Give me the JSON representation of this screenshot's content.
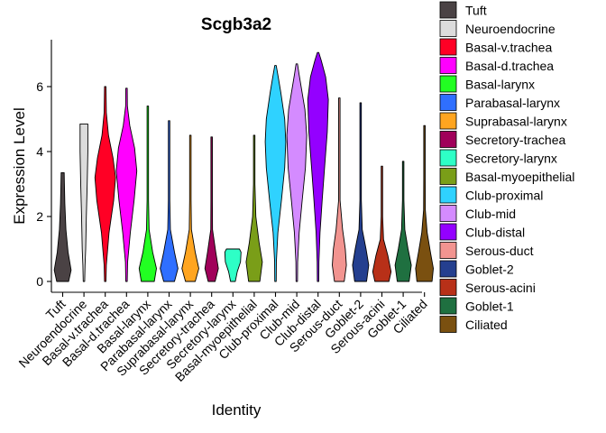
{
  "chart_data": {
    "type": "violin",
    "title": "Scgb3a2",
    "xlabel": "Identity",
    "ylabel": "Expression Level",
    "ylim": [
      -0.25,
      7.45
    ],
    "yticks": [
      0,
      2,
      4,
      6
    ],
    "grid": false,
    "legend_position": "right",
    "categories": [
      "Tuft",
      "Neuroendocrine",
      "Basal-v.trachea",
      "Basal-d.trachea",
      "Basal-larynx",
      "Parabasal-larynx",
      "Suprabasal-larynx",
      "Secretory-trachea",
      "Secretory-larynx",
      "Basal-myoepithelial",
      "Club-proximal",
      "Club-mid",
      "Club-distal",
      "Serous-duct",
      "Goblet-2",
      "Serous-acini",
      "Goblet-1",
      "Ciliated"
    ],
    "series": [
      {
        "name": "Tuft",
        "color": "#4A4244",
        "max": 3.35,
        "profile": [
          [
            0,
            0.55
          ],
          [
            0.35,
            0.78
          ],
          [
            0.9,
            0.5
          ],
          [
            1.6,
            0.3
          ],
          [
            2.4,
            0.2
          ],
          [
            3.0,
            0.16
          ],
          [
            3.35,
            0.14
          ]
        ]
      },
      {
        "name": "Neuroendocrine",
        "color": "#DCDCDC",
        "max": 4.85,
        "profile": [
          [
            0,
            0.05
          ],
          [
            0.5,
            0.1
          ],
          [
            1.0,
            0.16
          ],
          [
            2.0,
            0.22
          ],
          [
            3.0,
            0.3
          ],
          [
            4.0,
            0.36
          ],
          [
            4.85,
            0.36
          ]
        ]
      },
      {
        "name": "Basal-v.trachea",
        "color": "#FF0025",
        "max": 6.0,
        "profile": [
          [
            0,
            0.02
          ],
          [
            0.5,
            0.1
          ],
          [
            1.5,
            0.35
          ],
          [
            2.5,
            0.78
          ],
          [
            3.2,
            0.95
          ],
          [
            3.8,
            0.72
          ],
          [
            4.5,
            0.3
          ],
          [
            5.2,
            0.1
          ],
          [
            6.0,
            0.02
          ]
        ]
      },
      {
        "name": "Basal-d.trachea",
        "color": "#FF00FF",
        "max": 5.95,
        "profile": [
          [
            0,
            0.02
          ],
          [
            0.6,
            0.1
          ],
          [
            1.5,
            0.35
          ],
          [
            2.5,
            0.7
          ],
          [
            3.4,
            0.95
          ],
          [
            4.1,
            0.75
          ],
          [
            4.8,
            0.3
          ],
          [
            5.4,
            0.08
          ],
          [
            5.95,
            0.02
          ]
        ]
      },
      {
        "name": "Basal-larynx",
        "color": "#22FF22",
        "max": 5.4,
        "profile": [
          [
            0,
            0.6
          ],
          [
            0.4,
            0.8
          ],
          [
            0.9,
            0.45
          ],
          [
            1.6,
            0.12
          ],
          [
            2.5,
            0.06
          ],
          [
            3.5,
            0.04
          ],
          [
            5.4,
            0.01
          ]
        ]
      },
      {
        "name": "Parabasal-larynx",
        "color": "#2F6FFF",
        "max": 4.95,
        "profile": [
          [
            0,
            0.5
          ],
          [
            0.4,
            0.82
          ],
          [
            0.9,
            0.5
          ],
          [
            1.6,
            0.12
          ],
          [
            2.5,
            0.04
          ],
          [
            4.95,
            0.01
          ]
        ]
      },
      {
        "name": "Suprabasal-larynx",
        "color": "#FFA520",
        "max": 4.5,
        "profile": [
          [
            0,
            0.45
          ],
          [
            0.4,
            0.78
          ],
          [
            0.9,
            0.45
          ],
          [
            1.6,
            0.1
          ],
          [
            2.5,
            0.03
          ],
          [
            4.5,
            0.01
          ]
        ]
      },
      {
        "name": "Secretory-trachea",
        "color": "#A0005A",
        "max": 4.45,
        "profile": [
          [
            0,
            0.32
          ],
          [
            0.4,
            0.62
          ],
          [
            0.9,
            0.38
          ],
          [
            1.6,
            0.08
          ],
          [
            2.5,
            0.02
          ],
          [
            4.45,
            0.01
          ]
        ]
      },
      {
        "name": "Secretory-larynx",
        "color": "#2EFFC6",
        "max": 1.0,
        "profile": [
          [
            0,
            0.22
          ],
          [
            0.3,
            0.4
          ],
          [
            0.6,
            0.7
          ],
          [
            0.9,
            0.75
          ],
          [
            1.0,
            0.6
          ]
        ]
      },
      {
        "name": "Basal-myoepithelial",
        "color": "#7A9E18",
        "max": 4.5,
        "profile": [
          [
            0,
            0.52
          ],
          [
            0.6,
            0.75
          ],
          [
            1.2,
            0.45
          ],
          [
            2.0,
            0.15
          ],
          [
            3.0,
            0.04
          ],
          [
            4.5,
            0.01
          ]
        ]
      },
      {
        "name": "Club-proximal",
        "color": "#2FD2FF",
        "max": 6.65,
        "profile": [
          [
            0,
            0.03
          ],
          [
            0.6,
            0.08
          ],
          [
            1.5,
            0.22
          ],
          [
            2.5,
            0.55
          ],
          [
            3.5,
            0.85
          ],
          [
            4.3,
            0.95
          ],
          [
            5.0,
            0.85
          ],
          [
            5.8,
            0.5
          ],
          [
            6.3,
            0.25
          ],
          [
            6.65,
            0.05
          ]
        ]
      },
      {
        "name": "Club-mid",
        "color": "#D48BFF",
        "max": 6.7,
        "profile": [
          [
            0,
            0.03
          ],
          [
            0.6,
            0.08
          ],
          [
            1.5,
            0.22
          ],
          [
            2.5,
            0.5
          ],
          [
            3.5,
            0.8
          ],
          [
            4.5,
            0.92
          ],
          [
            5.3,
            0.75
          ],
          [
            6.0,
            0.4
          ],
          [
            6.4,
            0.2
          ],
          [
            6.7,
            0.05
          ]
        ]
      },
      {
        "name": "Club-distal",
        "color": "#9400FF",
        "max": 7.05,
        "profile": [
          [
            0,
            0.03
          ],
          [
            0.6,
            0.08
          ],
          [
            1.5,
            0.18
          ],
          [
            2.5,
            0.38
          ],
          [
            3.5,
            0.6
          ],
          [
            4.6,
            0.85
          ],
          [
            5.6,
            0.95
          ],
          [
            6.3,
            0.7
          ],
          [
            6.8,
            0.3
          ],
          [
            7.05,
            0.05
          ]
        ]
      },
      {
        "name": "Serous-duct",
        "color": "#F29490",
        "max": 5.65,
        "profile": [
          [
            0,
            0.45
          ],
          [
            0.5,
            0.65
          ],
          [
            1.0,
            0.55
          ],
          [
            1.6,
            0.3
          ],
          [
            2.5,
            0.06
          ],
          [
            3.5,
            0.02
          ],
          [
            5.65,
            0.01
          ]
        ]
      },
      {
        "name": "Goblet-2",
        "color": "#243F8F",
        "max": 5.5,
        "profile": [
          [
            0,
            0.55
          ],
          [
            0.5,
            0.75
          ],
          [
            1.0,
            0.5
          ],
          [
            1.6,
            0.15
          ],
          [
            2.5,
            0.04
          ],
          [
            5.5,
            0.01
          ]
        ]
      },
      {
        "name": "Serous-acini",
        "color": "#B83018",
        "max": 3.55,
        "profile": [
          [
            0,
            0.65
          ],
          [
            0.3,
            0.85
          ],
          [
            0.8,
            0.55
          ],
          [
            1.3,
            0.15
          ],
          [
            2.0,
            0.04
          ],
          [
            3.55,
            0.01
          ]
        ]
      },
      {
        "name": "Goblet-1",
        "color": "#1F7040",
        "max": 3.7,
        "profile": [
          [
            0,
            0.55
          ],
          [
            0.5,
            0.75
          ],
          [
            1.0,
            0.45
          ],
          [
            1.6,
            0.15
          ],
          [
            2.5,
            0.04
          ],
          [
            3.7,
            0.01
          ]
        ]
      },
      {
        "name": "Ciliated",
        "color": "#7A5010",
        "max": 4.8,
        "profile": [
          [
            0,
            0.7
          ],
          [
            0.4,
            0.82
          ],
          [
            0.9,
            0.55
          ],
          [
            1.5,
            0.25
          ],
          [
            2.2,
            0.08
          ],
          [
            3.2,
            0.03
          ],
          [
            4.8,
            0.01
          ]
        ]
      }
    ]
  }
}
